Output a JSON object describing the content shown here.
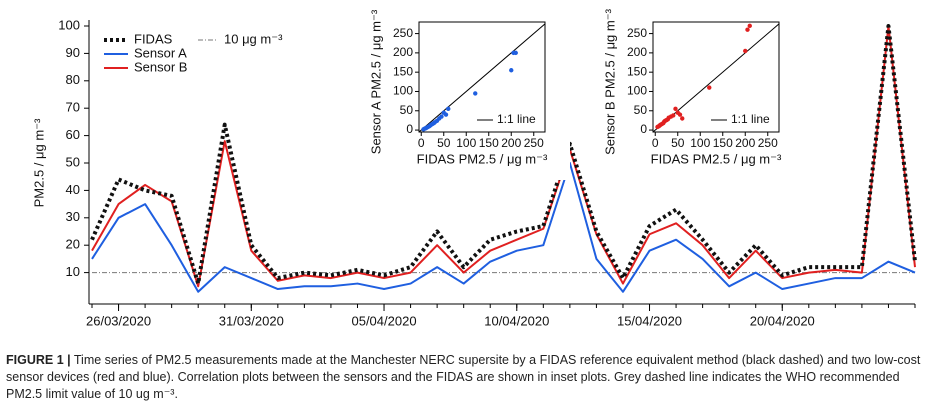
{
  "chart_data": [
    {
      "type": "line",
      "y_label": "PM2.5 / μg m⁻³",
      "x": [
        "2020-03-25",
        "2020-03-26",
        "2020-03-27",
        "2020-03-28",
        "2020-03-29",
        "2020-03-30",
        "2020-03-31",
        "2020-04-01",
        "2020-04-02",
        "2020-04-03",
        "2020-04-04",
        "2020-04-05",
        "2020-04-06",
        "2020-04-07",
        "2020-04-08",
        "2020-04-09",
        "2020-04-10",
        "2020-04-11",
        "2020-04-12",
        "2020-04-13",
        "2020-04-14",
        "2020-04-15",
        "2020-04-16",
        "2020-04-17",
        "2020-04-18",
        "2020-04-19",
        "2020-04-20",
        "2020-04-21",
        "2020-04-22",
        "2020-04-23",
        "2020-04-24",
        "2020-04-25"
      ],
      "series": [
        {
          "name": "Sensor A",
          "color": "#1f5fe0",
          "style": "solid",
          "values": [
            15,
            30,
            35,
            20,
            3,
            12,
            8,
            4,
            5,
            5,
            6,
            4,
            6,
            12,
            6,
            14,
            18,
            20,
            50,
            15,
            3,
            18,
            22,
            15,
            5,
            10,
            4,
            6,
            8,
            8,
            14,
            10
          ]
        },
        {
          "name": "Sensor B",
          "color": "#e02020",
          "style": "solid",
          "values": [
            18,
            35,
            42,
            36,
            5,
            58,
            18,
            7,
            9,
            8,
            10,
            8,
            10,
            20,
            10,
            18,
            22,
            26,
            55,
            24,
            6,
            24,
            28,
            20,
            8,
            18,
            8,
            10,
            11,
            10,
            100,
            12
          ]
        },
        {
          "name": "FIDAS",
          "color": "#111111",
          "style": "dotted",
          "values": [
            22,
            44,
            40,
            38,
            6,
            64,
            20,
            8,
            10,
            9,
            11,
            9,
            12,
            25,
            12,
            22,
            25,
            27,
            57,
            25,
            8,
            27,
            33,
            22,
            10,
            20,
            9,
            12,
            12,
            12,
            100,
            14
          ]
        }
      ],
      "hline": {
        "value": 10,
        "name": "10 μg m⁻³",
        "color": "#777777"
      },
      "legend_order": [
        2,
        0,
        1
      ],
      "xlim": [
        "2020-03-25",
        "2020-04-25"
      ],
      "xticks": [
        {
          "value": "2020-03-26",
          "label": "26/03/2020"
        },
        {
          "value": "2020-03-31",
          "label": "31/03/2020"
        },
        {
          "value": "2020-04-05",
          "label": "05/04/2020"
        },
        {
          "value": "2020-04-10",
          "label": "10/04/2020"
        },
        {
          "value": "2020-04-15",
          "label": "15/04/2020"
        },
        {
          "value": "2020-04-20",
          "label": "20/04/2020"
        }
      ],
      "ylim": [
        0,
        100
      ],
      "yticks": [
        10,
        20,
        30,
        40,
        50,
        60,
        70,
        80,
        90,
        100
      ]
    },
    {
      "type": "scatter",
      "color": "#1f5fe0",
      "x_label": "FIDAS PM2.5 / μg m⁻³",
      "y_label": "Sensor A PM2.5 / μg m⁻³",
      "line_name": "1:1 line",
      "x": [
        5,
        8,
        10,
        12,
        15,
        18,
        20,
        22,
        25,
        28,
        30,
        35,
        40,
        45,
        50,
        55,
        60,
        120,
        200,
        205,
        210
      ],
      "y": [
        2,
        4,
        5,
        6,
        8,
        10,
        12,
        14,
        16,
        18,
        20,
        24,
        30,
        35,
        45,
        40,
        55,
        95,
        155,
        200,
        200
      ],
      "xlim": [
        -5,
        275
      ],
      "ylim": [
        -5,
        280
      ],
      "xticks": [
        0,
        50,
        100,
        150,
        200,
        250
      ],
      "yticks": [
        0,
        50,
        100,
        150,
        200,
        250
      ]
    },
    {
      "type": "scatter",
      "color": "#e02020",
      "x_label": "FIDAS PM2.5 / μg m⁻³",
      "y_label": "Sensor B PM2.5 / μg m⁻³",
      "line_name": "1:1 line",
      "x": [
        5,
        8,
        10,
        12,
        15,
        18,
        20,
        22,
        25,
        28,
        30,
        35,
        40,
        45,
        50,
        55,
        60,
        120,
        200,
        205,
        210
      ],
      "y": [
        8,
        10,
        12,
        14,
        16,
        18,
        22,
        24,
        26,
        28,
        32,
        35,
        38,
        55,
        45,
        40,
        30,
        110,
        205,
        260,
        270
      ],
      "xlim": [
        -5,
        275
      ],
      "ylim": [
        -5,
        280
      ],
      "xticks": [
        0,
        50,
        100,
        150,
        200,
        250
      ],
      "yticks": [
        0,
        50,
        100,
        150,
        200,
        250
      ]
    }
  ],
  "caption": {
    "label": "FIGURE 1 |",
    "text": "Time series of PM2.5 measurements made at the Manchester NERC supersite by a FIDAS reference equivalent method (black dashed) and two low-cost sensor devices (red and blue). Correlation plots between the sensors and the FIDAS are shown in inset plots. Grey dashed line indicates the WHO recommended PM2.5 limit value of 10 ug m⁻³."
  }
}
